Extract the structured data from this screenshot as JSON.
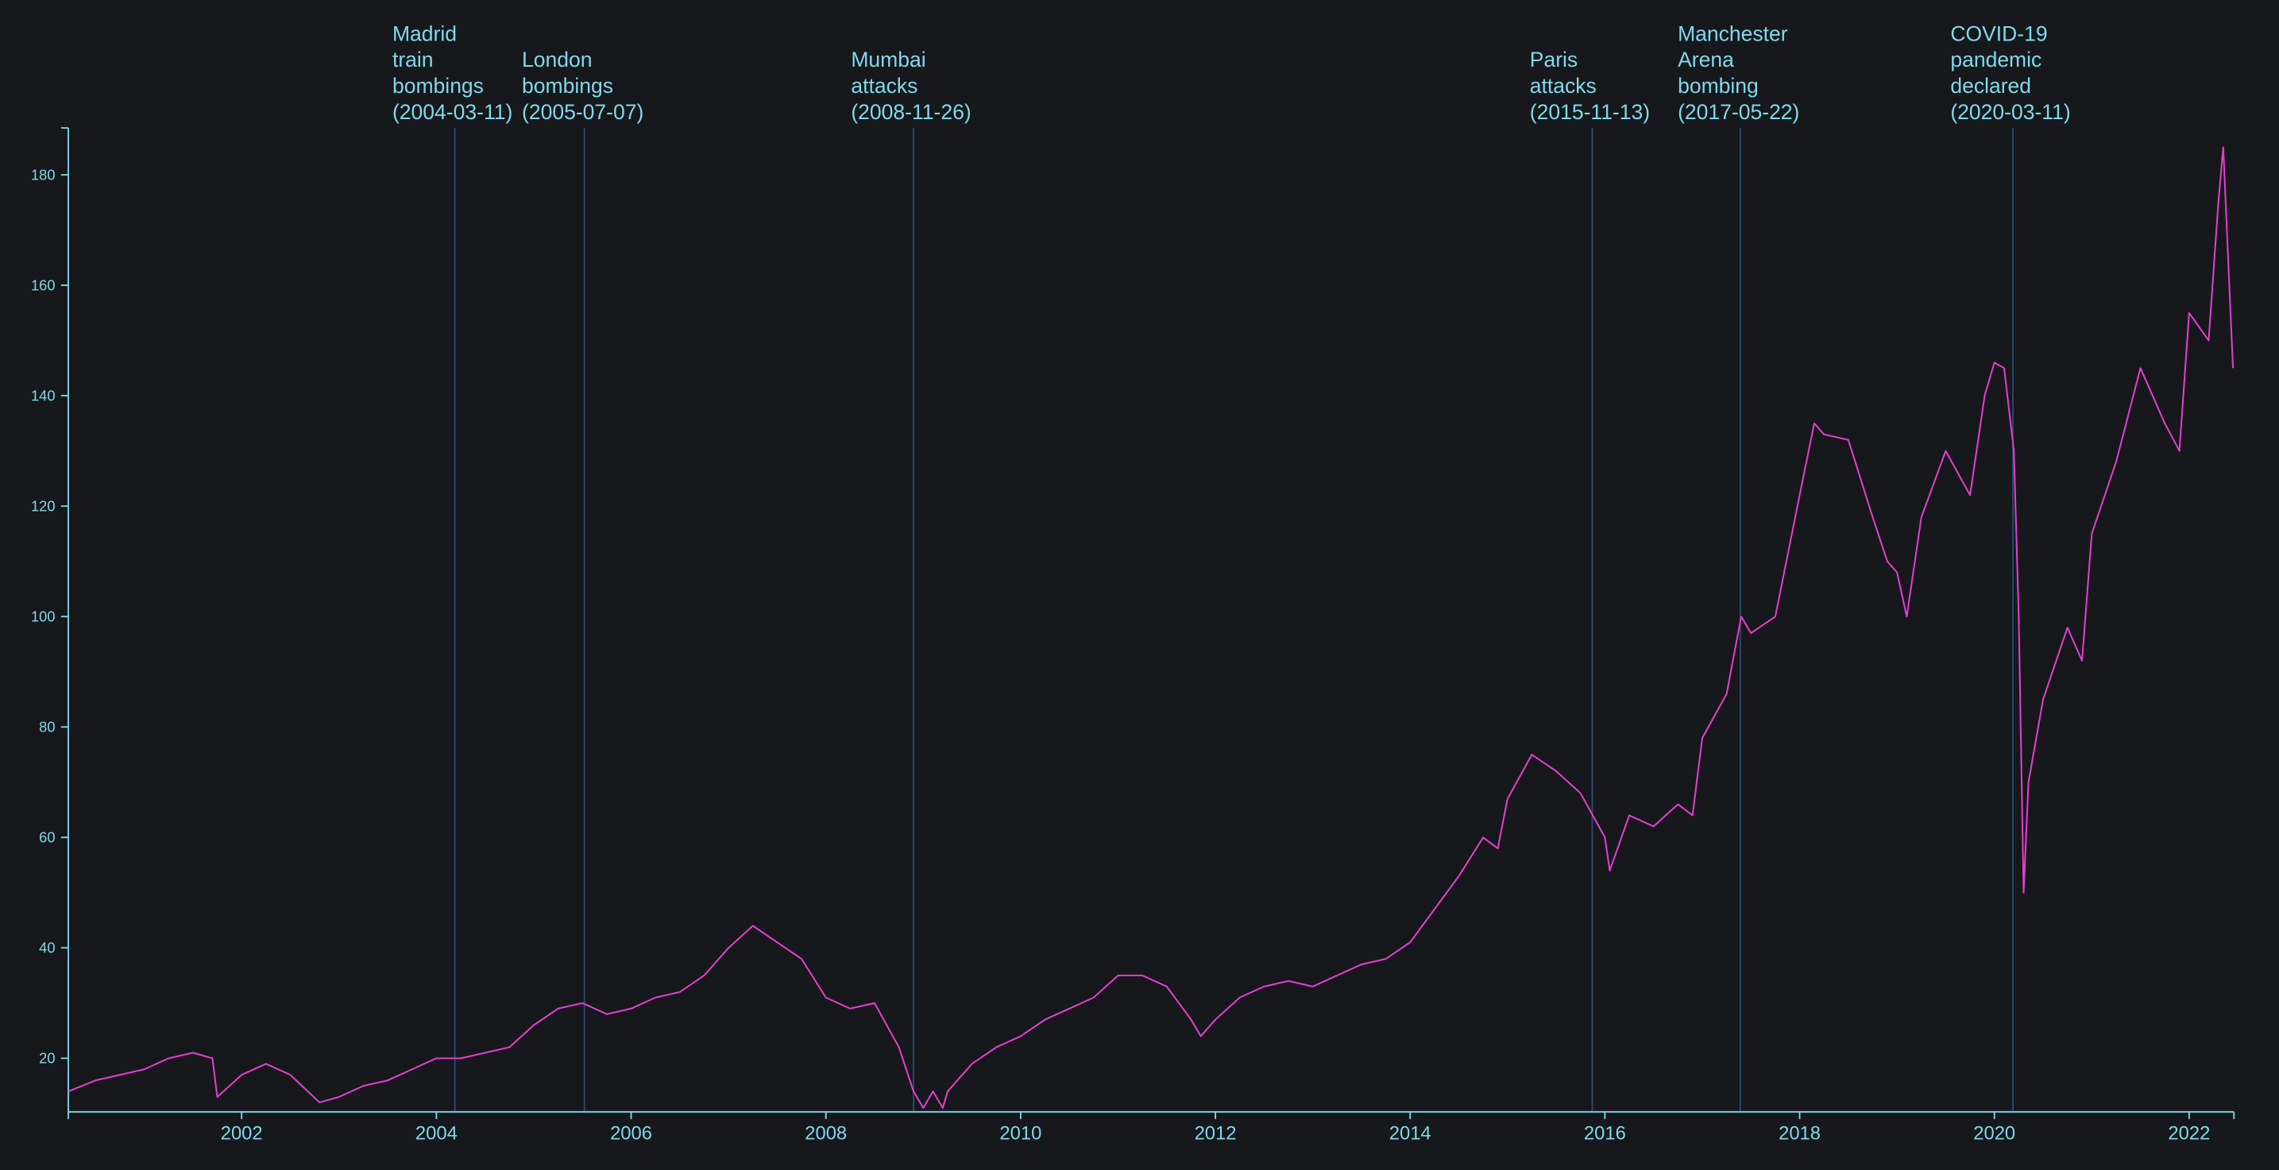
{
  "chart_data": {
    "type": "line",
    "x": [
      2000.22,
      2000.5,
      2000.75,
      2001.0,
      2001.25,
      2001.5,
      2001.7,
      2001.75,
      2002.0,
      2002.25,
      2002.5,
      2002.8,
      2003.0,
      2003.25,
      2003.5,
      2003.75,
      2004.0,
      2004.25,
      2004.5,
      2004.75,
      2005.0,
      2005.25,
      2005.5,
      2005.75,
      2006.0,
      2006.25,
      2006.5,
      2006.75,
      2007.0,
      2007.25,
      2007.5,
      2007.75,
      2008.0,
      2008.25,
      2008.5,
      2008.75,
      2008.9,
      2009.0,
      2009.1,
      2009.2,
      2009.25,
      2009.5,
      2009.75,
      2010.0,
      2010.25,
      2010.5,
      2010.75,
      2011.0,
      2011.25,
      2011.5,
      2011.75,
      2011.85,
      2012.0,
      2012.25,
      2012.5,
      2012.75,
      2013.0,
      2013.25,
      2013.5,
      2013.75,
      2014.0,
      2014.25,
      2014.5,
      2014.75,
      2014.9,
      2015.0,
      2015.25,
      2015.5,
      2015.75,
      2016.0,
      2016.05,
      2016.25,
      2016.5,
      2016.75,
      2016.9,
      2017.0,
      2017.25,
      2017.4,
      2017.5,
      2017.75,
      2018.0,
      2018.15,
      2018.25,
      2018.5,
      2018.75,
      2018.9,
      2019.0,
      2019.1,
      2019.25,
      2019.5,
      2019.75,
      2019.9,
      2020.0,
      2020.1,
      2020.2,
      2020.25,
      2020.3,
      2020.35,
      2020.5,
      2020.75,
      2020.9,
      2021.0,
      2021.25,
      2021.5,
      2021.75,
      2021.9,
      2022.0,
      2022.2,
      2022.3,
      2022.35,
      2022.45
    ],
    "values": [
      14,
      16,
      17,
      18,
      20,
      21,
      20,
      13,
      17,
      19,
      17,
      12,
      13,
      15,
      16,
      18,
      20,
      20,
      21,
      22,
      26,
      29,
      30,
      28,
      29,
      31,
      32,
      35,
      40,
      44,
      41,
      38,
      31,
      29,
      30,
      22,
      14,
      11,
      14,
      11,
      14,
      19,
      22,
      24,
      27,
      29,
      31,
      35,
      35,
      33,
      27,
      24,
      27,
      31,
      33,
      34,
      33,
      35,
      37,
      38,
      41,
      47,
      53,
      60,
      58,
      67,
      75,
      72,
      68,
      60,
      54,
      64,
      62,
      66,
      64,
      78,
      86,
      100,
      97,
      100,
      122,
      135,
      133,
      132,
      118,
      110,
      108,
      100,
      118,
      130,
      122,
      140,
      146,
      145,
      130,
      100,
      50,
      70,
      85,
      98,
      92,
      115,
      128,
      145,
      135,
      130,
      155,
      150,
      175,
      185,
      145
    ],
    "color": "#e33fcf",
    "xlim": [
      2000.22,
      2022.46
    ],
    "ylim": [
      10.3,
      188.5
    ],
    "xticks": [
      2002,
      2004,
      2006,
      2008,
      2010,
      2012,
      2014,
      2016,
      2018,
      2020,
      2022
    ],
    "yticks": [
      20,
      40,
      60,
      80,
      100,
      120,
      140,
      160,
      180
    ],
    "annotations": [
      {
        "x": 2004.19,
        "lines": [
          "Madrid",
          "train",
          "bombings",
          "(2004-03-11)"
        ]
      },
      {
        "x": 2005.52,
        "lines": [
          "London",
          "bombings",
          "(2005-07-07)"
        ]
      },
      {
        "x": 2008.9,
        "lines": [
          "Mumbai",
          "attacks",
          "(2008-11-26)"
        ]
      },
      {
        "x": 2015.87,
        "lines": [
          "Paris",
          "attacks",
          "(2015-11-13)"
        ]
      },
      {
        "x": 2017.39,
        "lines": [
          "Manchester",
          "Arena",
          "bombing",
          "(2017-05-22)"
        ]
      },
      {
        "x": 2020.19,
        "lines": [
          "COVID-19",
          "pandemic",
          "declared",
          "(2020-03-11)"
        ]
      }
    ]
  }
}
